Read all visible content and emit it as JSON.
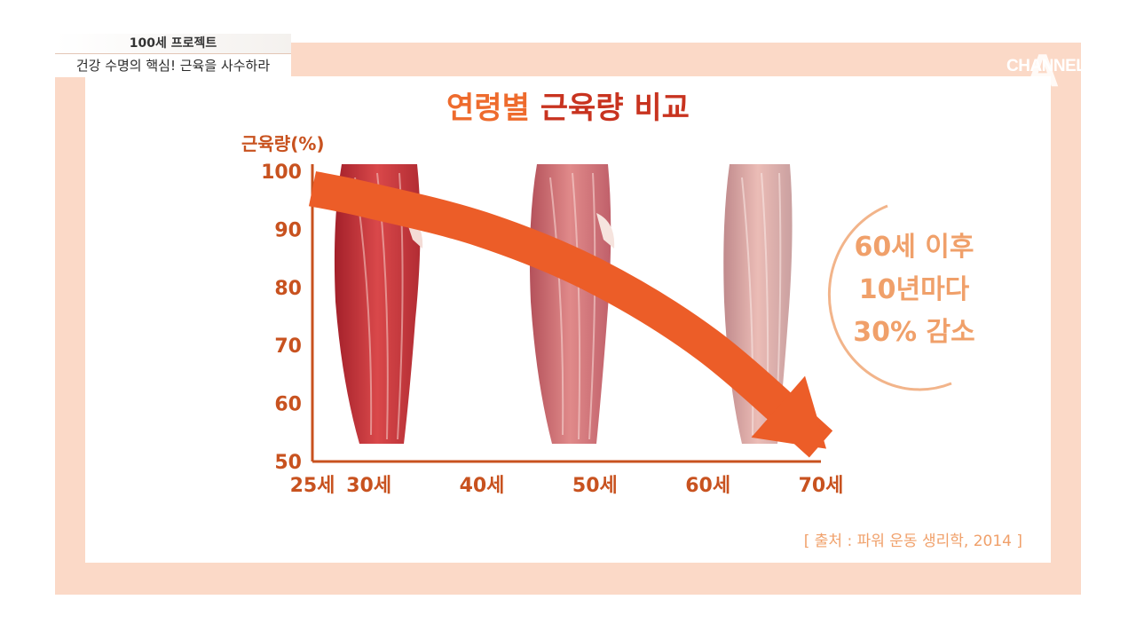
{
  "broadcast": {
    "show_tag": "100세 프로젝트",
    "show_subtitle": "건강 수명의 핵심! 근육을 사수하라",
    "channel_logo": "CHANNEL",
    "channel_logo_mark": "A"
  },
  "title_part1": "연령별",
  "title_part2": "근육량 비교",
  "callout_lines": [
    "60세 이후",
    "10년마다",
    "30% 감소"
  ],
  "source": "[ 출처 : 파워 운동 생리학, 2014 ]",
  "colors": {
    "arrow": "#ec5d28",
    "axis": "#c8521f",
    "frame": "#fbd9c7",
    "callout": "#f0a06a",
    "muscle_young": "#c43a3a",
    "muscle_mid": "#cf6a6c",
    "muscle_old": "#d99a98"
  },
  "chart_data": {
    "type": "line",
    "ylabel": "근육량(%)",
    "xlabel": "",
    "x_ticks": [
      "25세",
      "30세",
      "40세",
      "50세",
      "60세",
      "70세"
    ],
    "x_values": [
      25,
      30,
      40,
      50,
      60,
      70
    ],
    "y_ticks": [
      100,
      90,
      80,
      70,
      60,
      50
    ],
    "ylim": [
      50,
      100
    ],
    "grid": false,
    "series": [
      {
        "x": [
          25,
          30,
          40,
          50,
          60,
          70
        ],
        "values": [
          97,
          95,
          90,
          82,
          70,
          53
        ]
      }
    ]
  }
}
